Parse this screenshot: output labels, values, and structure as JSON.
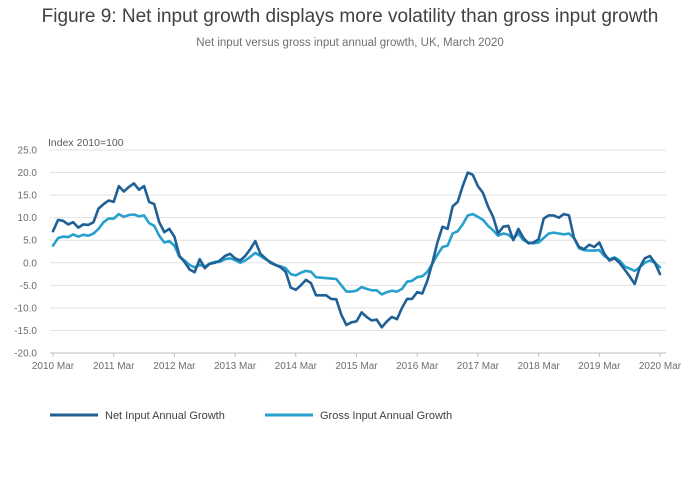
{
  "header": {
    "title": "Figure 9: Net input growth displays more volatility than gross input growth",
    "subtitle": "Net input versus gross input annual growth, UK, March 2020"
  },
  "chart_data": {
    "type": "line",
    "ylabel": "Index 2010=100",
    "ylim": [
      -20,
      25
    ],
    "yticks": [
      "25.0",
      "20.0",
      "15.0",
      "10.0",
      "5.0",
      "0.0",
      "-5.0",
      "-10.0",
      "-15.0",
      "-20.0"
    ],
    "xlim": [
      "2010 Mar",
      "2020 Mar"
    ],
    "xticks": [
      "2010 Mar",
      "2011 Mar",
      "2012 Mar",
      "2013 Mar",
      "2014 Mar",
      "2015 Mar",
      "2016 Mar",
      "2017 Mar",
      "2018 Mar",
      "2019 Mar",
      "2020 Mar"
    ],
    "grid": true,
    "legend_position": "bottom",
    "colors": {
      "net": "#206095",
      "gross": "#27a0cc"
    },
    "series": [
      {
        "name": "Net Input Annual Growth",
        "values": [
          7.0,
          9.5,
          9.3,
          8.5,
          9.0,
          7.8,
          8.5,
          8.4,
          9.0,
          12.0,
          13.0,
          13.8,
          13.5,
          17.0,
          15.8,
          16.8,
          17.6,
          16.2,
          17.0,
          13.5,
          13.0,
          9.0,
          6.8,
          7.5,
          5.8,
          1.5,
          0.2,
          -1.5,
          -2.1,
          0.8,
          -1.2,
          -0.2,
          0.0,
          0.5,
          1.5,
          2.0,
          1.0,
          0.5,
          1.5,
          3.0,
          4.8,
          2.0,
          1.0,
          0.0,
          -0.5,
          -1.0,
          -2.0,
          -5.5,
          -6.0,
          -5.0,
          -3.8,
          -4.5,
          -7.2,
          -7.2,
          -7.2,
          -8.0,
          -8.1,
          -11.5,
          -13.8,
          -13.2,
          -13.0,
          -11.0,
          -12.0,
          -12.8,
          -12.6,
          -14.3,
          -13.0,
          -12.0,
          -12.5,
          -10.0,
          -8.0,
          -8.0,
          -6.5,
          -6.8,
          -4.0,
          0.0,
          4.5,
          8.0,
          7.5,
          12.5,
          13.5,
          17.0,
          20.0,
          19.5,
          17.0,
          15.5,
          12.5,
          10.2,
          6.5,
          8.0,
          8.2,
          5.0,
          7.5,
          5.5,
          4.3,
          4.5,
          5.2,
          9.8,
          10.5,
          10.5,
          10.0,
          10.8,
          10.5,
          5.5,
          3.5,
          3.0,
          4.0,
          3.5,
          4.5,
          2.0,
          0.5,
          1.0,
          0.0,
          -1.5,
          -3.0,
          -4.7,
          -1.0,
          1.0,
          1.5,
          0.0,
          -2.5
        ]
      },
      {
        "name": "Gross Input Annual Growth",
        "values": [
          3.8,
          5.5,
          5.8,
          5.7,
          6.3,
          5.8,
          6.2,
          6.0,
          6.5,
          7.5,
          9.0,
          9.8,
          9.8,
          10.8,
          10.2,
          10.6,
          10.7,
          10.3,
          10.5,
          8.8,
          8.2,
          6.0,
          4.5,
          4.8,
          3.8,
          1.3,
          0.5,
          -0.5,
          -1.0,
          -0.5,
          -0.8,
          -0.2,
          0.2,
          0.2,
          0.8,
          1.0,
          0.6,
          0.0,
          0.5,
          1.3,
          2.2,
          1.5,
          0.8,
          0.2,
          -0.5,
          -0.8,
          -1.2,
          -2.5,
          -2.8,
          -2.2,
          -1.8,
          -2.0,
          -3.2,
          -3.3,
          -3.4,
          -3.5,
          -3.6,
          -5.0,
          -6.4,
          -6.4,
          -6.2,
          -5.4,
          -5.8,
          -6.1,
          -6.1,
          -7.0,
          -6.5,
          -6.2,
          -6.4,
          -5.8,
          -4.2,
          -4.0,
          -3.2,
          -3.0,
          -2.0,
          -0.2,
          1.8,
          3.5,
          3.8,
          6.5,
          7.0,
          8.5,
          10.5,
          10.8,
          10.2,
          9.5,
          8.2,
          7.2,
          6.0,
          6.5,
          6.2,
          5.3,
          6.5,
          5.0,
          4.5,
          4.3,
          4.5,
          5.5,
          6.5,
          6.7,
          6.5,
          6.3,
          6.5,
          5.5,
          3.2,
          2.8,
          2.7,
          2.7,
          2.8,
          1.5,
          0.8,
          1.2,
          0.5,
          -0.8,
          -1.3,
          -1.8,
          -1.0,
          0.0,
          0.5,
          0.0,
          -1.0
        ]
      }
    ]
  }
}
